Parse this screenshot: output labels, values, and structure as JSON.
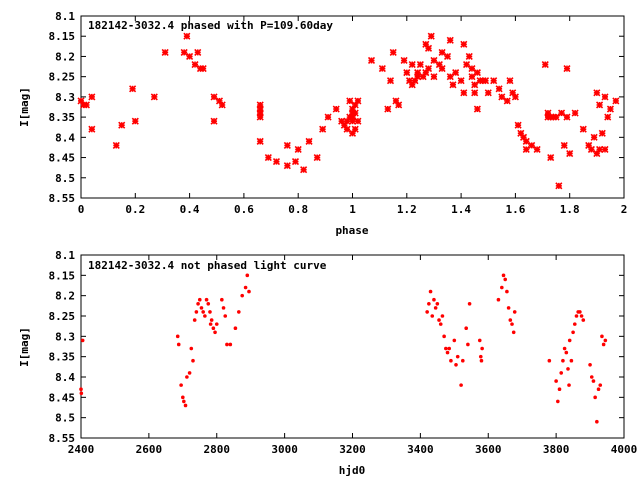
{
  "chart_data": [
    {
      "type": "scatter",
      "title": "182142-3032.4 phased with P=109.60day",
      "xlabel": "phase",
      "ylabel": "I[mag]",
      "xlim": [
        0,
        2
      ],
      "ylim": [
        8.1,
        8.55
      ],
      "y_inverted": true,
      "xticks": [
        0,
        0.2,
        0.4,
        0.6,
        0.8,
        1,
        1.2,
        1.4,
        1.6,
        1.8,
        2
      ],
      "xtick_labels": [
        "0",
        "0.2",
        "0.4",
        "0.6",
        "0.8",
        "1",
        "1.2",
        "1.4",
        "1.6",
        "1.8",
        "2"
      ],
      "yticks": [
        8.1,
        8.15,
        8.2,
        8.25,
        8.3,
        8.35,
        8.4,
        8.45,
        8.5,
        8.55
      ],
      "ytick_labels": [
        "8.1",
        "8.15",
        "8.2",
        "8.25",
        "8.3",
        "8.35",
        "8.4",
        "8.45",
        "8.5",
        "8.55"
      ],
      "marker": "star",
      "color": "#ff0000",
      "points": [
        [
          0.0,
          8.31
        ],
        [
          0.01,
          8.32
        ],
        [
          0.02,
          8.32
        ],
        [
          0.04,
          8.3
        ],
        [
          0.04,
          8.38
        ],
        [
          0.13,
          8.42
        ],
        [
          0.15,
          8.37
        ],
        [
          0.19,
          8.28
        ],
        [
          0.2,
          8.36
        ],
        [
          0.27,
          8.3
        ],
        [
          0.31,
          8.19
        ],
        [
          0.38,
          8.19
        ],
        [
          0.39,
          8.15
        ],
        [
          0.4,
          8.2
        ],
        [
          0.42,
          8.22
        ],
        [
          0.43,
          8.19
        ],
        [
          0.44,
          8.23
        ],
        [
          0.45,
          8.23
        ],
        [
          0.49,
          8.3
        ],
        [
          0.49,
          8.36
        ],
        [
          0.51,
          8.31
        ],
        [
          0.52,
          8.32
        ],
        [
          0.66,
          8.32
        ],
        [
          0.66,
          8.33
        ],
        [
          0.66,
          8.34
        ],
        [
          0.66,
          8.35
        ],
        [
          0.66,
          8.41
        ],
        [
          0.69,
          8.45
        ],
        [
          0.72,
          8.46
        ],
        [
          0.76,
          8.47
        ],
        [
          0.76,
          8.42
        ],
        [
          0.79,
          8.46
        ],
        [
          0.8,
          8.43
        ],
        [
          0.82,
          8.48
        ],
        [
          0.84,
          8.41
        ],
        [
          0.87,
          8.45
        ],
        [
          0.89,
          8.38
        ],
        [
          0.91,
          8.35
        ],
        [
          0.94,
          8.33
        ],
        [
          0.96,
          8.36
        ],
        [
          0.97,
          8.37
        ],
        [
          0.98,
          8.36
        ],
        [
          0.98,
          8.38
        ],
        [
          0.99,
          8.31
        ],
        [
          0.99,
          8.35
        ],
        [
          1.0,
          8.39
        ],
        [
          1.0,
          8.33
        ],
        [
          1.0,
          8.34
        ],
        [
          1.0,
          8.36
        ],
        [
          1.0,
          8.35
        ],
        [
          1.01,
          8.38
        ],
        [
          1.01,
          8.32
        ],
        [
          1.01,
          8.34
        ],
        [
          1.02,
          8.36
        ],
        [
          1.02,
          8.31
        ],
        [
          1.07,
          8.21
        ],
        [
          1.11,
          8.23
        ],
        [
          1.13,
          8.33
        ],
        [
          1.14,
          8.26
        ],
        [
          1.15,
          8.19
        ],
        [
          1.16,
          8.31
        ],
        [
          1.17,
          8.32
        ],
        [
          1.19,
          8.21
        ],
        [
          1.2,
          8.24
        ],
        [
          1.21,
          8.26
        ],
        [
          1.22,
          8.27
        ],
        [
          1.22,
          8.22
        ],
        [
          1.23,
          8.26
        ],
        [
          1.24,
          8.25
        ],
        [
          1.24,
          8.24
        ],
        [
          1.25,
          8.22
        ],
        [
          1.26,
          8.25
        ],
        [
          1.27,
          8.17
        ],
        [
          1.27,
          8.24
        ],
        [
          1.28,
          8.18
        ],
        [
          1.28,
          8.23
        ],
        [
          1.29,
          8.15
        ],
        [
          1.3,
          8.25
        ],
        [
          1.3,
          8.21
        ],
        [
          1.32,
          8.22
        ],
        [
          1.33,
          8.23
        ],
        [
          1.33,
          8.19
        ],
        [
          1.35,
          8.2
        ],
        [
          1.36,
          8.25
        ],
        [
          1.36,
          8.16
        ],
        [
          1.37,
          8.27
        ],
        [
          1.38,
          8.24
        ],
        [
          1.4,
          8.26
        ],
        [
          1.41,
          8.29
        ],
        [
          1.41,
          8.17
        ],
        [
          1.42,
          8.22
        ],
        [
          1.43,
          8.2
        ],
        [
          1.44,
          8.23
        ],
        [
          1.44,
          8.25
        ],
        [
          1.45,
          8.27
        ],
        [
          1.45,
          8.29
        ],
        [
          1.46,
          8.24
        ],
        [
          1.46,
          8.33
        ],
        [
          1.47,
          8.26
        ],
        [
          1.48,
          8.26
        ],
        [
          1.49,
          8.26
        ],
        [
          1.5,
          8.29
        ],
        [
          1.52,
          8.26
        ],
        [
          1.54,
          8.28
        ],
        [
          1.55,
          8.3
        ],
        [
          1.57,
          8.31
        ],
        [
          1.58,
          8.26
        ],
        [
          1.59,
          8.29
        ],
        [
          1.6,
          8.3
        ],
        [
          1.61,
          8.37
        ],
        [
          1.62,
          8.39
        ],
        [
          1.63,
          8.4
        ],
        [
          1.64,
          8.41
        ],
        [
          1.64,
          8.43
        ],
        [
          1.66,
          8.42
        ],
        [
          1.68,
          8.43
        ],
        [
          1.71,
          8.22
        ],
        [
          1.72,
          8.34
        ],
        [
          1.72,
          8.35
        ],
        [
          1.73,
          8.35
        ],
        [
          1.73,
          8.45
        ],
        [
          1.74,
          8.35
        ],
        [
          1.75,
          8.35
        ],
        [
          1.76,
          8.52
        ],
        [
          1.77,
          8.34
        ],
        [
          1.78,
          8.42
        ],
        [
          1.79,
          8.23
        ],
        [
          1.79,
          8.35
        ],
        [
          1.8,
          8.44
        ],
        [
          1.82,
          8.34
        ],
        [
          1.85,
          8.38
        ],
        [
          1.87,
          8.42
        ],
        [
          1.88,
          8.43
        ],
        [
          1.89,
          8.4
        ],
        [
          1.9,
          8.29
        ],
        [
          1.9,
          8.44
        ],
        [
          1.91,
          8.43
        ],
        [
          1.91,
          8.32
        ],
        [
          1.92,
          8.39
        ],
        [
          1.93,
          8.3
        ],
        [
          1.93,
          8.43
        ],
        [
          1.94,
          8.35
        ],
        [
          1.95,
          8.33
        ],
        [
          1.97,
          8.31
        ]
      ]
    },
    {
      "type": "scatter",
      "title": "182142-3032.4 not phased light curve",
      "xlabel": "hjd0",
      "ylabel": "I[mag]",
      "xlim": [
        2400,
        4000
      ],
      "ylim": [
        8.1,
        8.55
      ],
      "y_inverted": true,
      "xticks": [
        2400,
        2600,
        2800,
        3000,
        3200,
        3400,
        3600,
        3800,
        4000
      ],
      "xtick_labels": [
        "2400",
        "2600",
        "2800",
        "3000",
        "3200",
        "3400",
        "3600",
        "3800",
        "4000"
      ],
      "yticks": [
        8.1,
        8.15,
        8.2,
        8.25,
        8.3,
        8.35,
        8.4,
        8.45,
        8.5,
        8.55
      ],
      "ytick_labels": [
        "8.1",
        "8.15",
        "8.2",
        "8.25",
        "8.3",
        "8.35",
        "8.4",
        "8.45",
        "8.5",
        "8.55"
      ],
      "marker": "dot",
      "color": "#ff0000",
      "points": [
        [
          2400,
          8.43
        ],
        [
          2401,
          8.44
        ],
        [
          2405,
          8.31
        ],
        [
          2685,
          8.3
        ],
        [
          2688,
          8.32
        ],
        [
          2695,
          8.42
        ],
        [
          2700,
          8.45
        ],
        [
          2703,
          8.46
        ],
        [
          2708,
          8.47
        ],
        [
          2712,
          8.4
        ],
        [
          2720,
          8.39
        ],
        [
          2725,
          8.33
        ],
        [
          2730,
          8.36
        ],
        [
          2735,
          8.26
        ],
        [
          2740,
          8.24
        ],
        [
          2745,
          8.22
        ],
        [
          2750,
          8.21
        ],
        [
          2755,
          8.23
        ],
        [
          2760,
          8.24
        ],
        [
          2765,
          8.25
        ],
        [
          2770,
          8.21
        ],
        [
          2775,
          8.22
        ],
        [
          2780,
          8.24
        ],
        [
          2782,
          8.27
        ],
        [
          2785,
          8.26
        ],
        [
          2790,
          8.28
        ],
        [
          2795,
          8.29
        ],
        [
          2800,
          8.27
        ],
        [
          2815,
          8.21
        ],
        [
          2820,
          8.23
        ],
        [
          2825,
          8.25
        ],
        [
          2830,
          8.32
        ],
        [
          2840,
          8.32
        ],
        [
          2855,
          8.28
        ],
        [
          2865,
          8.24
        ],
        [
          2875,
          8.2
        ],
        [
          2885,
          8.18
        ],
        [
          2890,
          8.15
        ],
        [
          2895,
          8.19
        ],
        [
          3420,
          8.24
        ],
        [
          3425,
          8.22
        ],
        [
          3430,
          8.19
        ],
        [
          3435,
          8.25
        ],
        [
          3440,
          8.21
        ],
        [
          3445,
          8.23
        ],
        [
          3450,
          8.22
        ],
        [
          3455,
          8.26
        ],
        [
          3460,
          8.27
        ],
        [
          3465,
          8.25
        ],
        [
          3470,
          8.3
        ],
        [
          3475,
          8.33
        ],
        [
          3480,
          8.34
        ],
        [
          3485,
          8.33
        ],
        [
          3490,
          8.36
        ],
        [
          3500,
          8.31
        ],
        [
          3505,
          8.37
        ],
        [
          3510,
          8.35
        ],
        [
          3520,
          8.42
        ],
        [
          3525,
          8.36
        ],
        [
          3535,
          8.28
        ],
        [
          3540,
          8.32
        ],
        [
          3545,
          8.22
        ],
        [
          3575,
          8.31
        ],
        [
          3578,
          8.35
        ],
        [
          3580,
          8.36
        ],
        [
          3582,
          8.33
        ],
        [
          3630,
          8.21
        ],
        [
          3640,
          8.18
        ],
        [
          3645,
          8.15
        ],
        [
          3650,
          8.16
        ],
        [
          3655,
          8.19
        ],
        [
          3660,
          8.23
        ],
        [
          3665,
          8.26
        ],
        [
          3670,
          8.27
        ],
        [
          3675,
          8.29
        ],
        [
          3678,
          8.24
        ],
        [
          3780,
          8.36
        ],
        [
          3800,
          8.41
        ],
        [
          3805,
          8.46
        ],
        [
          3810,
          8.43
        ],
        [
          3815,
          8.39
        ],
        [
          3820,
          8.36
        ],
        [
          3825,
          8.33
        ],
        [
          3830,
          8.34
        ],
        [
          3835,
          8.38
        ],
        [
          3838,
          8.42
        ],
        [
          3840,
          8.31
        ],
        [
          3845,
          8.36
        ],
        [
          3850,
          8.29
        ],
        [
          3855,
          8.27
        ],
        [
          3860,
          8.25
        ],
        [
          3865,
          8.24
        ],
        [
          3870,
          8.24
        ],
        [
          3875,
          8.25
        ],
        [
          3880,
          8.26
        ],
        [
          3900,
          8.37
        ],
        [
          3905,
          8.4
        ],
        [
          3910,
          8.41
        ],
        [
          3915,
          8.45
        ],
        [
          3920,
          8.51
        ],
        [
          3925,
          8.43
        ],
        [
          3930,
          8.42
        ],
        [
          3935,
          8.3
        ],
        [
          3940,
          8.32
        ],
        [
          3945,
          8.31
        ]
      ]
    }
  ]
}
